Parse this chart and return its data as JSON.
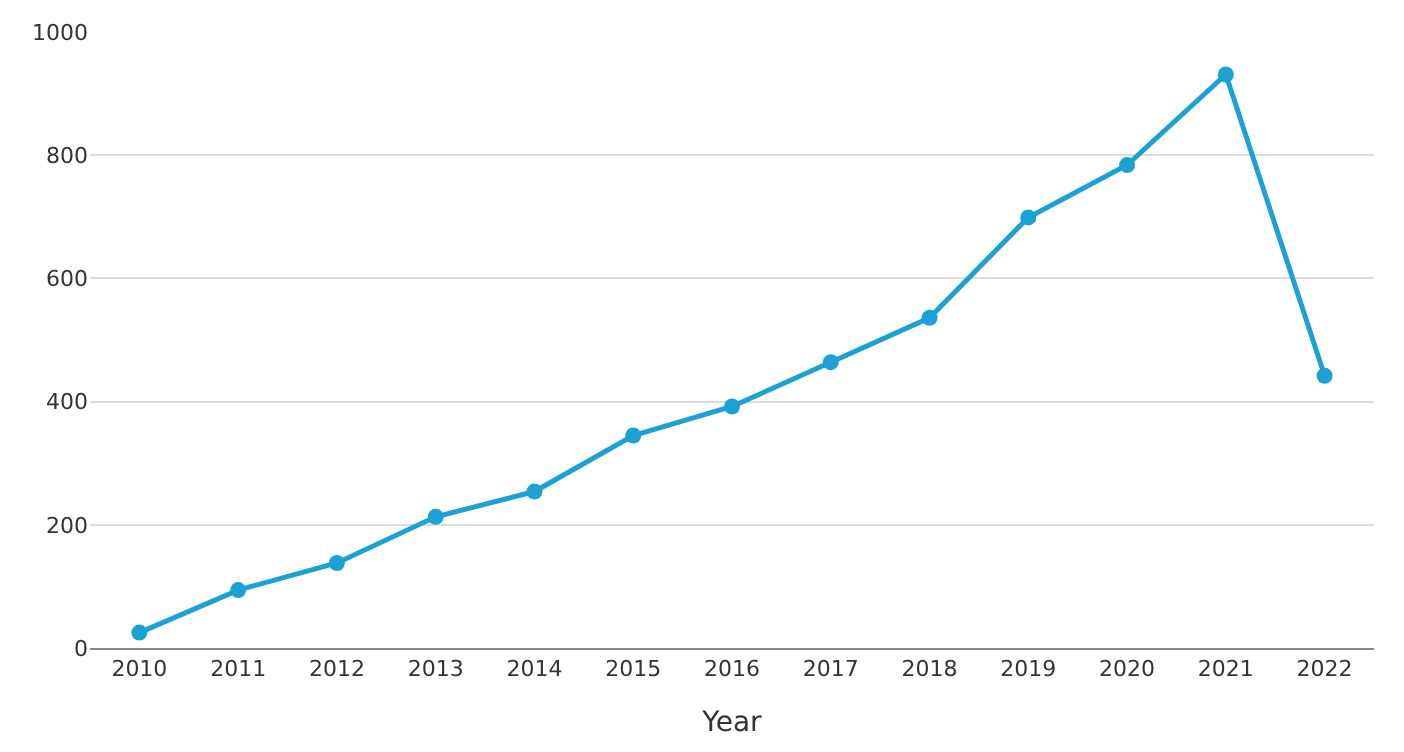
{
  "chart_data": {
    "type": "line",
    "xlabel": "Year",
    "categories": [
      "2010",
      "2011",
      "2012",
      "2013",
      "2014",
      "2015",
      "2016",
      "2017",
      "2018",
      "2019",
      "2020",
      "2021",
      "2022"
    ],
    "series": [
      {
        "color": "#1ba1d3",
        "values": [
          25,
          94,
          138,
          213,
          254,
          345,
          392,
          464,
          536,
          699,
          784,
          931,
          442
        ]
      }
    ],
    "ylim": [
      0,
      1000
    ],
    "yticks": [
      0,
      200,
      400,
      600,
      800,
      1000
    ],
    "grid": "y",
    "marker": "circle",
    "line_style": "solid",
    "legend": false
  }
}
